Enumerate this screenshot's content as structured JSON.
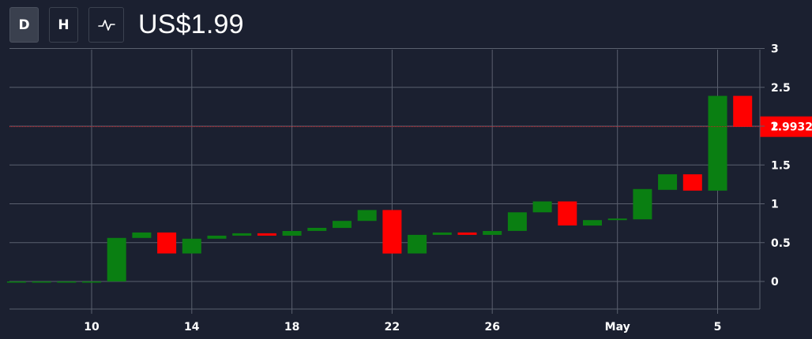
{
  "toolbar": {
    "buttons": [
      {
        "label": "D",
        "active": true
      },
      {
        "label": "H",
        "active": false
      }
    ],
    "line_icon": "line-chart-icon"
  },
  "price_label": "US$1.99",
  "colors": {
    "background": "#1b2030",
    "grid": "#5a606e",
    "up": "#0a7f12",
    "down": "#ff0000",
    "text": "#ffffff",
    "last_price_line": "#d0202a"
  },
  "chart_data": {
    "type": "candlestick",
    "ylim": [
      -0.35,
      3
    ],
    "y_ticks": [
      0,
      0.5,
      1,
      1.5,
      2,
      2.5,
      3
    ],
    "y_tick_labels": [
      "0",
      "0.5",
      "1",
      "1.5",
      "2",
      "2.5",
      "3"
    ],
    "x_ticks": [
      {
        "day": 10,
        "label": "10"
      },
      {
        "day": 14,
        "label": "14"
      },
      {
        "day": 18,
        "label": "18"
      },
      {
        "day": 22,
        "label": "22"
      },
      {
        "day": 26,
        "label": "26"
      },
      {
        "day": 31,
        "label": "May"
      },
      {
        "day": 35,
        "label": "5"
      }
    ],
    "last_price": 1.9932,
    "last_price_label": "1.9932",
    "candles": [
      {
        "day": 7,
        "open": 0.0,
        "close": 0.0
      },
      {
        "day": 8,
        "open": 0.0,
        "close": 0.0
      },
      {
        "day": 9,
        "open": 0.0,
        "close": 0.0
      },
      {
        "day": 10,
        "open": 0.0,
        "close": 0.0
      },
      {
        "day": 11,
        "open": 0.0,
        "close": 0.56
      },
      {
        "day": 12,
        "open": 0.56,
        "close": 0.63
      },
      {
        "day": 13,
        "open": 0.63,
        "close": 0.36
      },
      {
        "day": 14,
        "open": 0.36,
        "close": 0.55
      },
      {
        "day": 15,
        "open": 0.55,
        "close": 0.59
      },
      {
        "day": 16,
        "open": 0.59,
        "close": 0.62
      },
      {
        "day": 17,
        "open": 0.62,
        "close": 0.59
      },
      {
        "day": 18,
        "open": 0.59,
        "close": 0.65
      },
      {
        "day": 19,
        "open": 0.65,
        "close": 0.69
      },
      {
        "day": 20,
        "open": 0.69,
        "close": 0.78
      },
      {
        "day": 21,
        "open": 0.78,
        "close": 0.92
      },
      {
        "day": 22,
        "open": 0.92,
        "close": 0.36
      },
      {
        "day": 23,
        "open": 0.36,
        "close": 0.6
      },
      {
        "day": 24,
        "open": 0.6,
        "close": 0.63
      },
      {
        "day": 25,
        "open": 0.63,
        "close": 0.6
      },
      {
        "day": 26,
        "open": 0.6,
        "close": 0.65
      },
      {
        "day": 27,
        "open": 0.65,
        "close": 0.89
      },
      {
        "day": 28,
        "open": 0.89,
        "close": 1.03
      },
      {
        "day": 29,
        "open": 1.03,
        "close": 0.72
      },
      {
        "day": 30,
        "open": 0.72,
        "close": 0.79
      },
      {
        "day": 31,
        "open": 0.79,
        "close": 0.81
      },
      {
        "day": 32,
        "open": 0.8,
        "close": 1.19
      },
      {
        "day": 33,
        "open": 1.18,
        "close": 1.38
      },
      {
        "day": 34,
        "open": 1.38,
        "close": 1.17
      },
      {
        "day": 35,
        "open": 1.17,
        "close": 2.39
      },
      {
        "day": 36,
        "open": 2.39,
        "close": 1.99
      }
    ]
  }
}
